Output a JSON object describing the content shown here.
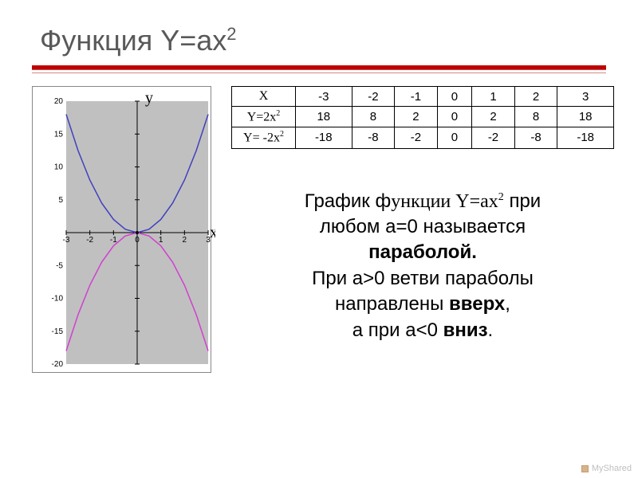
{
  "title_html": "Функция Y=ax<sup>2</sup>",
  "chart": {
    "type": "line",
    "plot_bg": "#c0c0c0",
    "frame_border": "#888888",
    "y_axis_label": "y",
    "x_axis_label": "x",
    "xlim": [
      -3,
      3
    ],
    "ylim": [
      -20,
      20
    ],
    "xticks": [
      -3,
      -2,
      -1,
      0,
      1,
      2,
      3
    ],
    "yticks": [
      -20,
      -15,
      -10,
      -5,
      0,
      5,
      10,
      15,
      20
    ],
    "axis_color": "#000000",
    "series": [
      {
        "name": "2x^2",
        "color": "#4040c0",
        "width": 1.5,
        "points": [
          [
            -3,
            18
          ],
          [
            -2.5,
            12.5
          ],
          [
            -2,
            8
          ],
          [
            -1.5,
            4.5
          ],
          [
            -1,
            2
          ],
          [
            -0.5,
            0.5
          ],
          [
            0,
            0
          ],
          [
            0.5,
            0.5
          ],
          [
            1,
            2
          ],
          [
            1.5,
            4.5
          ],
          [
            2,
            8
          ],
          [
            2.5,
            12.5
          ],
          [
            3,
            18
          ]
        ]
      },
      {
        "name": "-2x^2",
        "color": "#d040d0",
        "width": 1.5,
        "points": [
          [
            -3,
            -18
          ],
          [
            -2.5,
            -12.5
          ],
          [
            -2,
            -8
          ],
          [
            -1.5,
            -4.5
          ],
          [
            -1,
            -2
          ],
          [
            -0.5,
            -0.5
          ],
          [
            0,
            0
          ],
          [
            0.5,
            -0.5
          ],
          [
            1,
            -2
          ],
          [
            1.5,
            -4.5
          ],
          [
            2,
            -8
          ],
          [
            2.5,
            -12.5
          ],
          [
            3,
            -18
          ]
        ]
      }
    ]
  },
  "table": {
    "row_headers_html": [
      "X",
      "Y=2x<sup>2</sup>",
      "Y= -2x<sup>2</sup>"
    ],
    "columns": [
      "-3",
      "-2",
      "-1",
      "0",
      "1",
      "2",
      "3"
    ],
    "rows": [
      [
        "18",
        "8",
        "2",
        "0",
        "2",
        "8",
        "18"
      ],
      [
        "-18",
        "-8",
        "-2",
        "0",
        "-2",
        "-8",
        "-18"
      ]
    ]
  },
  "explain_html": "График ф<span class=\"serif\">ункции Y=ax<sup>2</sup></span> при<br>любом а=0 называется<br><b>параболой.</b><br>При а&gt;0 ветви параболы<br>направлены <b>вверх</b>,<br>а при а&lt;0 <b>вниз</b>.",
  "footer": "MyShared",
  "colors": {
    "title": "#595959",
    "rule": "#c00000",
    "text": "#000000"
  }
}
